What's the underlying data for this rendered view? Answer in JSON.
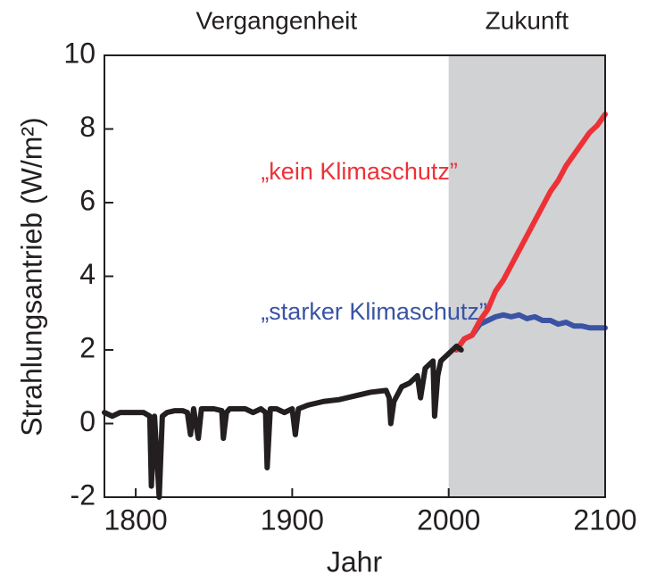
{
  "chart_data": {
    "type": "line",
    "y_label": "Strahlungsantrieb (W/m²)",
    "x_label": "Jahr",
    "annotations": [
      {
        "text": "Vergangenheit",
        "x": 1890,
        "y": 10.9
      },
      {
        "text": "Zukunft",
        "x": 2050,
        "y": 10.9
      },
      {
        "text": "„kein Klimaschutz”",
        "x": 1880,
        "y": 6.8,
        "color": "#ed3237"
      },
      {
        "text": "„starker Klimaschutz”",
        "x": 1880,
        "y": 3.0,
        "color": "#3a53a4"
      }
    ],
    "shaded_region": {
      "from": 2000,
      "to": 2100,
      "color": "#d1d2d4"
    },
    "xlim": [
      1780,
      2100
    ],
    "xticks": [
      1800,
      1900,
      2000,
      2100
    ],
    "ylim": [
      -2,
      10
    ],
    "yticks": [
      -2,
      0,
      2,
      4,
      6,
      8,
      10
    ],
    "series": [
      {
        "color": "#3a53a4",
        "x": [
          2005,
          2010,
          2015,
          2020,
          2025,
          2030,
          2035,
          2040,
          2045,
          2050,
          2055,
          2060,
          2065,
          2070,
          2075,
          2080,
          2085,
          2090,
          2095,
          2100
        ],
        "values": [
          2.0,
          2.3,
          2.4,
          2.7,
          2.8,
          2.9,
          2.95,
          2.9,
          2.95,
          2.85,
          2.9,
          2.8,
          2.8,
          2.7,
          2.75,
          2.65,
          2.65,
          2.6,
          2.6,
          2.6
        ]
      },
      {
        "color": "#ed3237",
        "x": [
          2005,
          2010,
          2015,
          2020,
          2025,
          2030,
          2035,
          2040,
          2045,
          2050,
          2055,
          2060,
          2065,
          2070,
          2075,
          2080,
          2085,
          2090,
          2095,
          2100
        ],
        "values": [
          2.0,
          2.3,
          2.4,
          2.8,
          3.1,
          3.6,
          3.9,
          4.3,
          4.7,
          5.1,
          5.5,
          5.9,
          6.3,
          6.6,
          7.0,
          7.3,
          7.6,
          7.9,
          8.1,
          8.4
        ]
      },
      {
        "color": "#231f20",
        "x": [
          1780,
          1785,
          1790,
          1795,
          1800,
          1805,
          1809,
          1810,
          1812,
          1815,
          1817,
          1820,
          1825,
          1830,
          1833,
          1835,
          1837,
          1840,
          1842,
          1850,
          1855,
          1856,
          1858,
          1860,
          1870,
          1875,
          1880,
          1883,
          1884,
          1886,
          1890,
          1895,
          1900,
          1902,
          1904,
          1910,
          1920,
          1930,
          1940,
          1950,
          1960,
          1962,
          1963,
          1965,
          1970,
          1975,
          1980,
          1982,
          1985,
          1990,
          1991,
          1993,
          1995,
          2000,
          2005,
          2008
        ],
        "values": [
          0.3,
          0.2,
          0.3,
          0.3,
          0.3,
          0.3,
          0.2,
          -1.7,
          0.2,
          -2.0,
          0.2,
          0.3,
          0.35,
          0.35,
          0.3,
          -0.3,
          0.4,
          -0.4,
          0.4,
          0.4,
          0.35,
          -0.4,
          0.3,
          0.4,
          0.4,
          0.3,
          0.4,
          0.3,
          -1.2,
          0.4,
          0.4,
          0.3,
          0.4,
          -0.3,
          0.4,
          0.5,
          0.6,
          0.65,
          0.75,
          0.85,
          0.9,
          0.7,
          0.0,
          0.6,
          1.0,
          1.1,
          1.3,
          0.7,
          1.5,
          1.7,
          0.2,
          1.3,
          1.7,
          1.9,
          2.1,
          2.0
        ]
      }
    ]
  }
}
